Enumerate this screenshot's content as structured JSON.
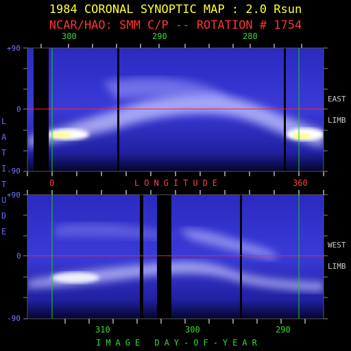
{
  "title": "1984 CORONAL SYNOPTIC MAP : 2.0 Rsun",
  "subtitle": "NCAR/HAO: SMM C/P -- ROTATION # 1754",
  "top_panel": {
    "carrington_ticks": [
      "300",
      "290",
      "280"
    ],
    "longitude_ticks": [
      "0",
      "360"
    ],
    "latitude_ticks": [
      "+90",
      "0",
      "-90"
    ],
    "side_labels": [
      "EAST",
      "LIMB"
    ]
  },
  "longitude_label": "LONGITUDE",
  "latitude_label": [
    "L",
    "A",
    "T",
    "I",
    "T",
    "U",
    "D",
    "E"
  ],
  "bottom_panel": {
    "latitude_ticks": [
      "+90",
      "0",
      "-90"
    ],
    "day_ticks": [
      "310",
      "300",
      "290"
    ],
    "side_labels": [
      "WEST",
      "LIMB"
    ]
  },
  "xlabel": "IMAGE DAY-OF-YEAR",
  "colors": {
    "title": "#ffff33",
    "subtitle": "#ff3333",
    "grid_green": "#22cc22",
    "equator_red": "#ff2222",
    "map_base": "#1a1ab0",
    "bright": "#ffffff",
    "peak": "#ffff66"
  }
}
